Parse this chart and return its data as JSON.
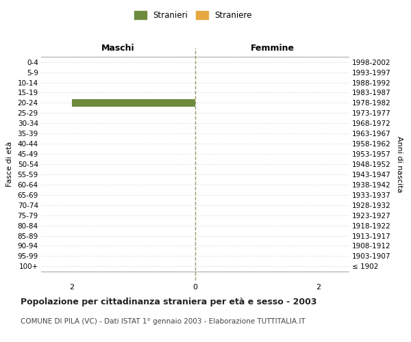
{
  "age_groups": [
    "100+",
    "95-99",
    "90-94",
    "85-89",
    "80-84",
    "75-79",
    "70-74",
    "65-69",
    "60-64",
    "55-59",
    "50-54",
    "45-49",
    "40-44",
    "35-39",
    "30-34",
    "25-29",
    "20-24",
    "15-19",
    "10-14",
    "5-9",
    "0-4"
  ],
  "birth_years": [
    "≤ 1902",
    "1903-1907",
    "1908-1912",
    "1913-1917",
    "1918-1922",
    "1923-1927",
    "1928-1932",
    "1933-1937",
    "1938-1942",
    "1943-1947",
    "1948-1952",
    "1953-1957",
    "1958-1962",
    "1963-1967",
    "1968-1972",
    "1973-1977",
    "1978-1982",
    "1983-1987",
    "1988-1992",
    "1993-1997",
    "1998-2002"
  ],
  "male_stranieri": [
    0,
    0,
    0,
    0,
    0,
    0,
    0,
    0,
    0,
    0,
    0,
    0,
    0,
    0,
    0,
    0,
    2,
    0,
    0,
    0,
    0
  ],
  "male_straniere": [
    0,
    0,
    0,
    0,
    0,
    0,
    0,
    0,
    0,
    0,
    0,
    0,
    0,
    0,
    0,
    0,
    0,
    0,
    0,
    0,
    0
  ],
  "female_stranieri": [
    0,
    0,
    0,
    0,
    0,
    0,
    0,
    0,
    0,
    0,
    0,
    0,
    0,
    0,
    0,
    0,
    0,
    0,
    0,
    0,
    0
  ],
  "female_straniere": [
    0,
    0,
    0,
    0,
    0,
    0,
    0,
    0,
    0,
    0,
    0,
    0,
    0,
    0,
    0,
    0,
    0,
    0,
    0,
    0,
    0
  ],
  "color_stranieri": "#6e8b3d",
  "color_straniere": "#e8a840",
  "xlim": 2.5,
  "xlabel_ticks": [
    -2,
    0,
    2
  ],
  "xlabel_labels": [
    "2",
    "0",
    "2"
  ],
  "title_bold": "Popolazione per cittadinanza straniera per età e sesso - 2003",
  "subtitle": "COMUNE DI PILA (VC) - Dati ISTAT 1° gennaio 2003 - Elaborazione TUTTITALIA.IT",
  "label_maschi": "Maschi",
  "label_femmine": "Femmine",
  "label_stranieri": "Stranieri",
  "label_straniere": "Straniere",
  "ylabel_left": "Fasce di età",
  "ylabel_right": "Anni di nascita",
  "background_color": "#ffffff",
  "grid_color": "#cccccc",
  "center_line_color": "#999966"
}
